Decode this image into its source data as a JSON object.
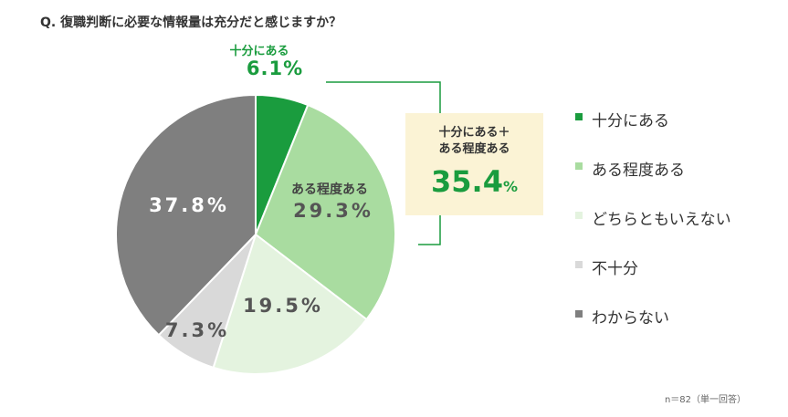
{
  "title": "Q. 復職判断に必要な情報量は充分だと感じますか？",
  "chart_data": {
    "type": "pie",
    "categories": [
      "十分にある",
      "ある程度ある",
      "どちらともいえない",
      "不十分",
      "わからない"
    ],
    "values": [
      6.1,
      29.3,
      19.5,
      7.3,
      37.8
    ],
    "value_labels": [
      "6.1%",
      "29.3%",
      "19.5%",
      "7.3%",
      "37.8%"
    ],
    "slice_labels": [
      "十分にある",
      "ある程度ある",
      "",
      "",
      ""
    ],
    "colors": [
      "#1a9c3e",
      "#a9dca0",
      "#e4f3df",
      "#d9d9d9",
      "#7f7f7f"
    ],
    "legend": [
      "十分にある",
      "ある程度ある",
      "どちらともいえない",
      "不十分",
      "わからない"
    ],
    "legend_placement": "right"
  },
  "callout": {
    "line1": "十分にある＋",
    "line2": "ある程度ある",
    "value": "35.4",
    "unit": "%"
  },
  "note": "n＝82（単一回答）"
}
